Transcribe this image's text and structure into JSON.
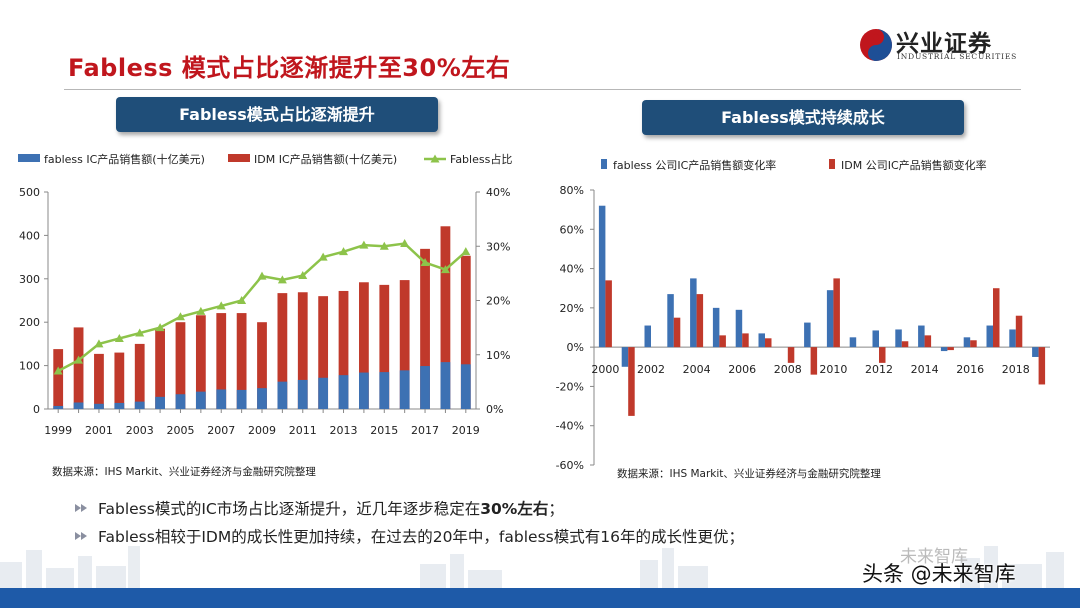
{
  "title": "Fabless 模式占比逐渐提升至30%左右",
  "logo": {
    "cn": "兴业证券",
    "en": "INDUSTRIAL SECURITIES"
  },
  "tabs": {
    "left": "Fabless模式占比逐渐提升",
    "right": "Fabless模式持续成长"
  },
  "colors": {
    "fabless": "#3d71b3",
    "idm": "#c0392b",
    "share": "#8dc34a",
    "title": "#c0161d",
    "tab": "#1f4e79",
    "footer": "#1e5aa8"
  },
  "chart_data": [
    {
      "type": "bar",
      "legend": [
        "fabless IC产品销售额(十亿美元)",
        "IDM IC产品销售额(十亿美元)",
        "Fabless占比"
      ],
      "x": [
        1999,
        2000,
        2001,
        2002,
        2003,
        2004,
        2005,
        2006,
        2007,
        2008,
        2009,
        2010,
        2011,
        2012,
        2013,
        2014,
        2015,
        2016,
        2017,
        2018,
        2019
      ],
      "x_tick_labels": [
        "1999",
        "2001",
        "2003",
        "2005",
        "2007",
        "2009",
        "2011",
        "2013",
        "2015",
        "2017",
        "2019"
      ],
      "series": [
        {
          "name": "fabless IC产品销售额(十亿美元)",
          "values": [
            7,
            15,
            12,
            14,
            17,
            28,
            34,
            40,
            45,
            44,
            48,
            63,
            67,
            72,
            78,
            84,
            85,
            89,
            99,
            108,
            103
          ]
        },
        {
          "name": "IDM IC产品销售额(十亿美元)",
          "values": [
            138,
            188,
            127,
            130,
            150,
            185,
            200,
            216,
            221,
            221,
            200,
            267,
            269,
            260,
            272,
            292,
            286,
            297,
            369,
            421,
            353
          ]
        },
        {
          "name": "Fabless占比",
          "axis": "right",
          "values": [
            7,
            9,
            12,
            13,
            14,
            15,
            17,
            18,
            19,
            20,
            24.5,
            23.8,
            24.6,
            28,
            29,
            30.2,
            30,
            30.5,
            27,
            25.7,
            29
          ]
        }
      ],
      "y_left": {
        "ticks": [
          "0",
          "100",
          "200",
          "300",
          "400",
          "500"
        ],
        "range": [
          0,
          500
        ]
      },
      "y_right": {
        "ticks": [
          "0%",
          "10%",
          "20%",
          "30%",
          "40%"
        ],
        "range": [
          0,
          40
        ]
      },
      "source": "数据来源：IHS Markit、兴业证券经济与金融研究院整理"
    },
    {
      "type": "bar",
      "legend": [
        "fabless 公司IC产品销售额变化率",
        "IDM 公司IC产品销售额变化率"
      ],
      "x": [
        2000,
        2001,
        2002,
        2003,
        2004,
        2005,
        2006,
        2007,
        2008,
        2009,
        2010,
        2011,
        2012,
        2013,
        2014,
        2015,
        2016,
        2017,
        2018,
        2019
      ],
      "x_tick_labels": [
        "2000",
        "2002",
        "2004",
        "2006",
        "2008",
        "2010",
        "2012",
        "2014",
        "2016",
        "2018"
      ],
      "series": [
        {
          "name": "fabless 公司IC产品销售额变化率",
          "values": [
            72,
            -10,
            11,
            27,
            35,
            20,
            19,
            7,
            0,
            12.5,
            29,
            5,
            8.5,
            9,
            11,
            -2,
            5,
            11,
            9,
            -5
          ]
        },
        {
          "name": "IDM 公司IC产品销售额变化率",
          "values": [
            34,
            -35,
            0,
            15,
            27,
            6,
            7,
            4.5,
            -8,
            -14,
            35,
            0,
            -8,
            3,
            6,
            -1.5,
            3.5,
            30,
            16,
            -19
          ]
        }
      ],
      "y": {
        "ticks": [
          "80%",
          "60%",
          "40%",
          "20%",
          "0%",
          "-20%",
          "-40%",
          "-60%"
        ],
        "range": [
          -60,
          80
        ]
      },
      "source": "数据来源：IHS Markit、兴业证券经济与金融研究院整理"
    }
  ],
  "bullets": [
    {
      "text": "Fabless模式的IC市场占比逐渐提升，近几年逐步稳定在",
      "strong": "30%左右",
      "tail": "；"
    },
    {
      "text": "Fabless相较于IDM的成长性更加持续，在过去的20年中，fabless模式有16年的成长性更优；",
      "strong": "",
      "tail": ""
    }
  ],
  "watermark": {
    "top": "未来智库",
    "bottom": "头条 @未来智库"
  }
}
